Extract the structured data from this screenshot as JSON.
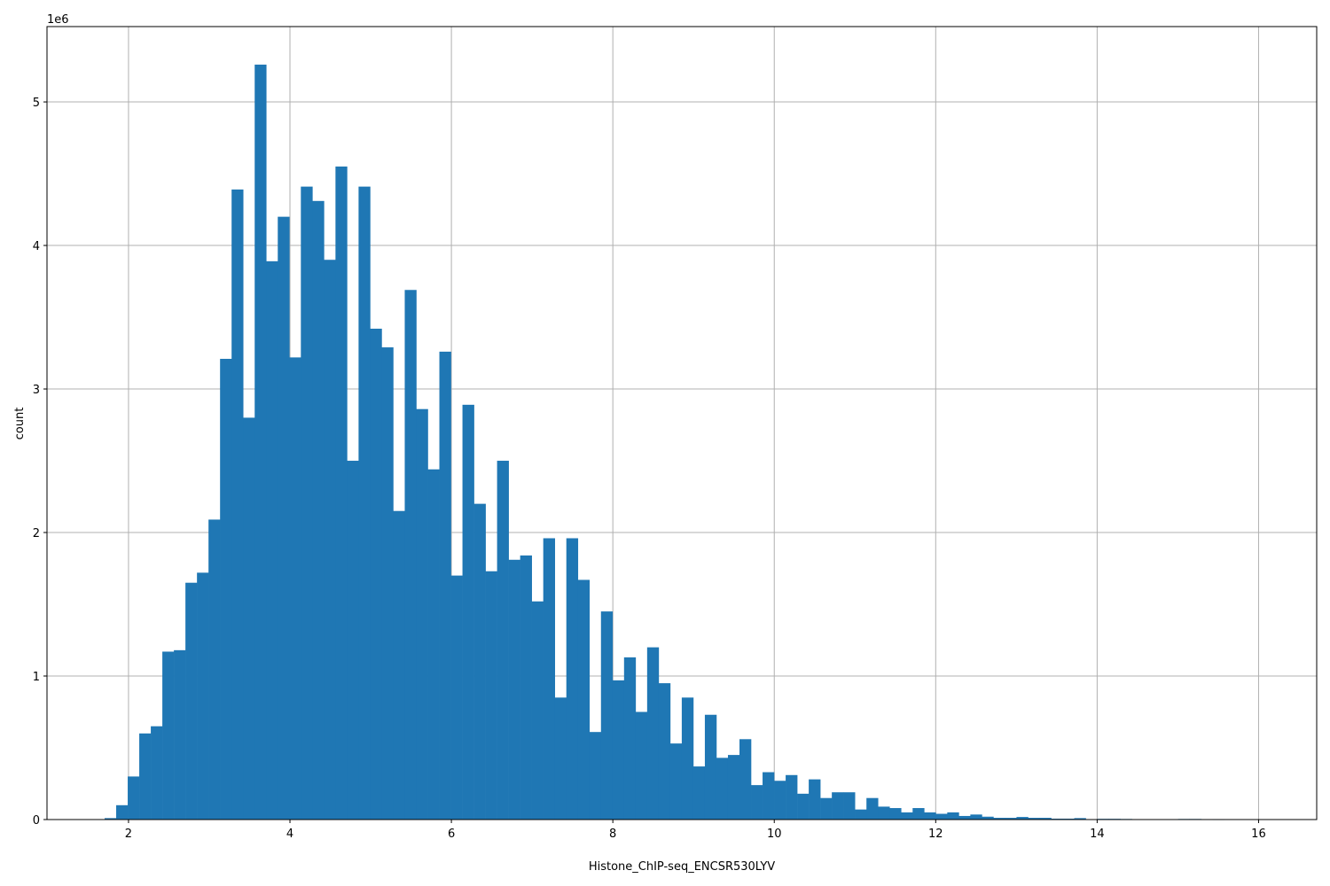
{
  "chart_data": {
    "type": "bar",
    "subtype": "histogram",
    "title": "",
    "xlabel": "Histone_ChIP-seq_ENCSR530LYV",
    "ylabel": "count",
    "y_offset_label": "1e6",
    "bin_start": 1.704,
    "bin_width": 0.143,
    "xlim": [
      0.99,
      16.72
    ],
    "ylim": [
      0,
      5525000
    ],
    "xticks": [
      "2",
      "4",
      "6",
      "8",
      "10",
      "12",
      "14",
      "16"
    ],
    "yticks": [
      "0",
      "1",
      "2",
      "3",
      "4",
      "5"
    ],
    "grid": true,
    "bar_color": "#1f77b4",
    "grid_color": "#b0b0b0",
    "values": [
      10000,
      100000,
      300000,
      600000,
      650000,
      1170000,
      1180000,
      1650000,
      1720000,
      2090000,
      3210000,
      4390000,
      2800000,
      5260000,
      3890000,
      4200000,
      3220000,
      4410000,
      4310000,
      3900000,
      4550000,
      2500000,
      4410000,
      3420000,
      3290000,
      2150000,
      3690000,
      2860000,
      2440000,
      3260000,
      1700000,
      2890000,
      2200000,
      1730000,
      2500000,
      1810000,
      1840000,
      1520000,
      1960000,
      850000,
      1960000,
      1670000,
      610000,
      1450000,
      970000,
      1130000,
      750000,
      1200000,
      950000,
      530000,
      850000,
      370000,
      730000,
      430000,
      450000,
      560000,
      240000,
      330000,
      270000,
      310000,
      180000,
      280000,
      150000,
      190000,
      190000,
      70000,
      150000,
      90000,
      80000,
      50000,
      80000,
      50000,
      40000,
      50000,
      25000,
      35000,
      20000,
      12000,
      12000,
      18000,
      12000,
      12000,
      6000,
      6000,
      10000,
      2000,
      5000,
      5000,
      4000,
      1000,
      1000,
      1000,
      1000,
      4000,
      4000,
      1000,
      500,
      0,
      0,
      0
    ]
  }
}
